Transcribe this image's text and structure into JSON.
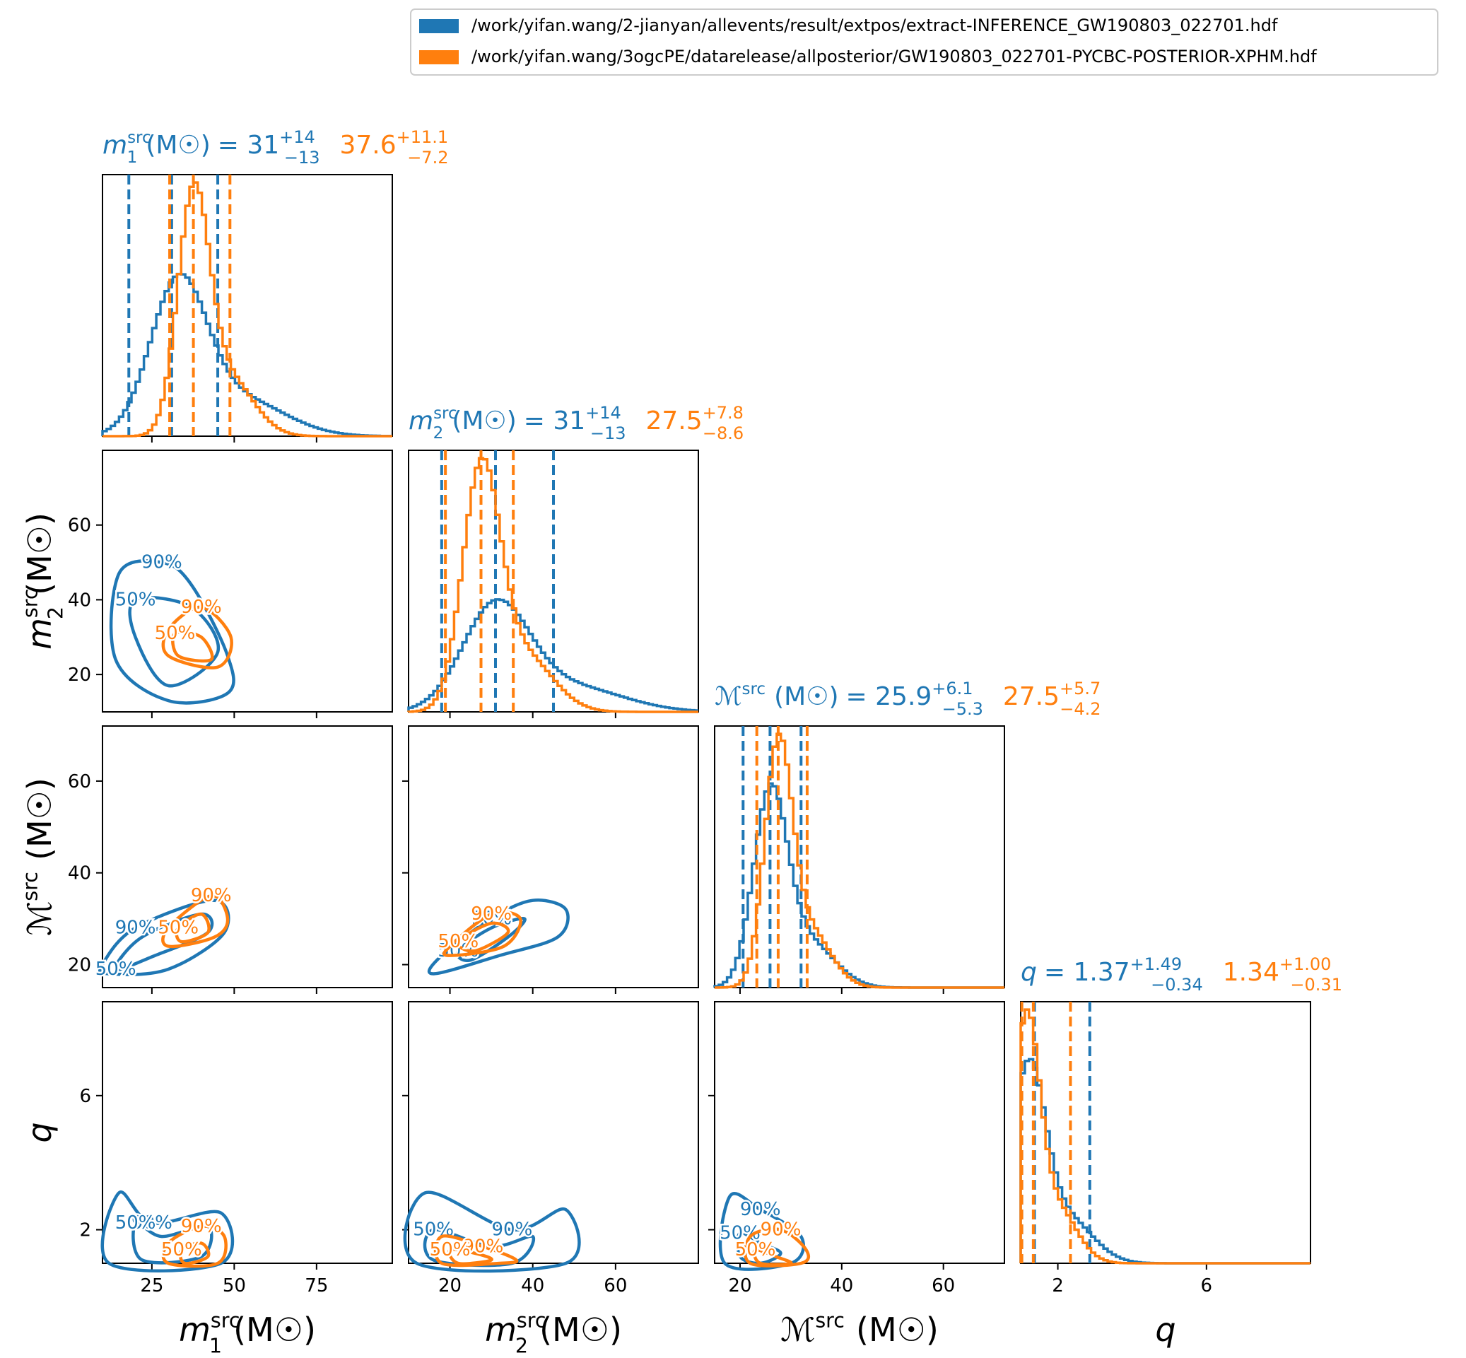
{
  "colors": {
    "blue": "#1f77b4",
    "orange": "#ff7f0e",
    "axis": "#000000"
  },
  "legend": {
    "placement": "top-right",
    "entries": [
      {
        "label": "/work/yifan.wang/2-jianyan/allevents/result/extpos/extract-INFERENCE_GW190803_022701.hdf",
        "color": "#1f77b4"
      },
      {
        "label": "/work/yifan.wang/3ogcPE/datarelease/allposterior/GW190803_022701-PYCBC-POSTERIOR-XPHM.hdf",
        "color": "#ff7f0e"
      }
    ]
  },
  "chart_data": {
    "type": "corner",
    "parameters": [
      {
        "key": "m1",
        "name": "m",
        "sub": "1",
        "sup": "src",
        "unit": "(M☉)",
        "math": false,
        "ticks": [
          25,
          50,
          75
        ],
        "tick_labels": [
          "25",
          "50",
          "75"
        ],
        "range": [
          10,
          98
        ],
        "summary": {
          "blue": {
            "median": "31",
            "plus": "+14",
            "minus": "−13"
          },
          "orange": {
            "median": "37.6",
            "plus": "+11.1",
            "minus": "−7.2"
          }
        }
      },
      {
        "key": "m2",
        "name": "m",
        "sub": "2",
        "sup": "src",
        "unit": "(M☉)",
        "math": false,
        "ticks": [
          20,
          40,
          60
        ],
        "tick_labels": [
          "20",
          "40",
          "60"
        ],
        "range": [
          10,
          80
        ],
        "summary": {
          "blue": {
            "median": "31",
            "plus": "+14",
            "minus": "−13"
          },
          "orange": {
            "median": "27.5",
            "plus": "+7.8",
            "minus": "−8.6"
          }
        }
      },
      {
        "key": "mc",
        "name": "ℳ",
        "sub": "",
        "sup": "src",
        "unit": "(M☉)",
        "math": true,
        "ticks": [
          20,
          40,
          60
        ],
        "tick_labels": [
          "20",
          "40",
          "60"
        ],
        "range": [
          15,
          72
        ],
        "summary": {
          "blue": {
            "median": "25.9",
            "plus": "+6.1",
            "minus": "−5.3"
          },
          "orange": {
            "median": "27.5",
            "plus": "+5.7",
            "minus": "−4.2"
          }
        }
      },
      {
        "key": "q",
        "name": "q",
        "sub": "",
        "sup": "",
        "unit": "",
        "math": false,
        "ticks": [
          2,
          6
        ],
        "tick_labels": [
          "2",
          "6"
        ],
        "range": [
          1.0,
          8.8
        ],
        "summary": {
          "blue": {
            "median": "1.37",
            "plus": "+1.49",
            "minus": "−0.34"
          },
          "orange": {
            "median": "1.34",
            "plus": "+1.00",
            "minus": "−0.31"
          }
        }
      }
    ],
    "series": [
      {
        "name": "blue",
        "marginals": {
          "m1": {
            "mu": 33,
            "sigma": 8.5,
            "dashed": [
              18,
              31,
              45
            ]
          },
          "m2": {
            "mu": 31,
            "sigma": 8,
            "dashed": [
              18,
              31,
              45
            ]
          },
          "mc": {
            "mu": 25.9,
            "sigma": 3.3,
            "dashed": [
              20.6,
              25.9,
              32
            ]
          },
          "q": {
            "mu": 1.2,
            "sigma": 0.45,
            "dashed": [
              1.03,
              1.37,
              2.86
            ]
          }
        },
        "contours": {
          "m2_m1": {
            "c50": [
              [
                20,
                40
              ],
              [
                37,
                38
              ],
              [
                45,
                26
              ],
              [
                30,
                17
              ],
              [
                20,
                30
              ]
            ],
            "c90": [
              [
                15,
                47
              ],
              [
                28,
                50
              ],
              [
                37,
                44
              ],
              [
                48,
                25
              ],
              [
                48,
                15
              ],
              [
                30,
                13
              ],
              [
                14,
                24
              ]
            ]
          },
          "mc_m1": {
            "c50": [
              [
                14,
                19
              ],
              [
                22,
                26
              ],
              [
                40,
                31
              ],
              [
                42,
                27
              ],
              [
                26,
                22
              ]
            ],
            "c90": [
              [
                10,
                20
              ],
              [
                20,
                28
              ],
              [
                44,
                34
              ],
              [
                47,
                27
              ],
              [
                30,
                19
              ],
              [
                12,
                18
              ]
            ]
          },
          "mc_m2": {
            "c50": [
              [
                22,
                23
              ],
              [
                30,
                28
              ],
              [
                38,
                30
              ],
              [
                34,
                26
              ],
              [
                25,
                21
              ]
            ],
            "c90": [
              [
                18,
                22
              ],
              [
                30,
                30
              ],
              [
                40,
                34
              ],
              [
                48,
                32
              ],
              [
                46,
                26
              ],
              [
                32,
                22
              ],
              [
                16,
                18
              ]
            ]
          },
          "q_m1": {
            "c50": [
              [
                20,
                2.2
              ],
              [
                28,
                1.8
              ],
              [
                42,
                2.1
              ],
              [
                40,
                1.2
              ],
              [
                22,
                1.1
              ]
            ],
            "c90": [
              [
                15,
                3.1
              ],
              [
                25,
                2.2
              ],
              [
                46,
                2.5
              ],
              [
                46,
                1.0
              ],
              [
                12,
                1.0
              ]
            ]
          },
          "q_m2": {
            "c50": [
              [
                16,
                2.0
              ],
              [
                30,
                1.5
              ],
              [
                40,
                1.8
              ],
              [
                35,
                1.0
              ],
              [
                16,
                1.1
              ]
            ],
            "c90": [
              [
                14,
                3.1
              ],
              [
                35,
                2.0
              ],
              [
                48,
                2.6
              ],
              [
                48,
                1.0
              ],
              [
                12,
                1.0
              ]
            ]
          },
          "q_mc": {
            "c50": [
              [
                20,
                1.9
              ],
              [
                24,
                1.6
              ],
              [
                28,
                1.3
              ],
              [
                24,
                1.0
              ],
              [
                20,
                1.2
              ]
            ],
            "c90": [
              [
                18,
                3.0
              ],
              [
                24,
                2.6
              ],
              [
                32,
                1.8
              ],
              [
                30,
                1.0
              ],
              [
                17,
                1.0
              ]
            ]
          }
        }
      },
      {
        "name": "orange",
        "marginals": {
          "m1": {
            "mu": 37.6,
            "sigma": 4.8,
            "dashed": [
              30.4,
              37.6,
              48.7
            ]
          },
          "m2": {
            "mu": 27.5,
            "sigma": 4.5,
            "dashed": [
              18.9,
              27.5,
              35.3
            ]
          },
          "mc": {
            "mu": 27.5,
            "sigma": 2.7,
            "dashed": [
              23.3,
              27.5,
              33.2
            ]
          },
          "q": {
            "mu": 1.15,
            "sigma": 0.35,
            "dashed": [
              1.03,
              1.34,
              2.34
            ]
          }
        },
        "contours": {
          "m2_m1": {
            "c50": [
              [
                32,
                31
              ],
              [
                40,
                30
              ],
              [
                43,
                24
              ],
              [
                33,
                25
              ]
            ],
            "c90": [
              [
                30,
                32
              ],
              [
                40,
                38
              ],
              [
                49,
                30
              ],
              [
                45,
                22
              ],
              [
                30,
                25
              ]
            ]
          },
          "mc_m1": {
            "c50": [
              [
                33,
                28
              ],
              [
                40,
                31
              ],
              [
                42,
                27
              ],
              [
                34,
                25
              ]
            ],
            "c90": [
              [
                30,
                28
              ],
              [
                43,
                35
              ],
              [
                48,
                30
              ],
              [
                44,
                26
              ],
              [
                30,
                24
              ]
            ]
          },
          "mc_m2": {
            "c50": [
              [
                22,
                25
              ],
              [
                30,
                29
              ],
              [
                34,
                27
              ],
              [
                26,
                23
              ]
            ],
            "c90": [
              [
                20,
                24
              ],
              [
                30,
                31
              ],
              [
                37,
                30
              ],
              [
                33,
                24
              ],
              [
                20,
                22
              ]
            ]
          },
          "q_m1": {
            "c50": [
              [
                34,
                1.4
              ],
              [
                40,
                1.6
              ],
              [
                42,
                1.2
              ],
              [
                35,
                1.0
              ]
            ],
            "c90": [
              [
                30,
                1.6
              ],
              [
                40,
                2.1
              ],
              [
                47,
                1.8
              ],
              [
                45,
                1.0
              ],
              [
                30,
                1.0
              ]
            ]
          },
          "q_m2": {
            "c50": [
              [
                20,
                1.4
              ],
              [
                26,
                1.3
              ],
              [
                30,
                1.1
              ],
              [
                22,
                1.0
              ]
            ],
            "c90": [
              [
                18,
                1.8
              ],
              [
                28,
                1.5
              ],
              [
                36,
                1.1
              ],
              [
                32,
                1.0
              ],
              [
                18,
                1.0
              ]
            ]
          },
          "q_mc": {
            "c50": [
              [
                23,
                1.4
              ],
              [
                27,
                1.2
              ],
              [
                30,
                1.0
              ],
              [
                24,
                1.0
              ]
            ],
            "c90": [
              [
                22,
                1.8
              ],
              [
                28,
                2.0
              ],
              [
                33,
                1.4
              ],
              [
                32,
                1.0
              ],
              [
                22,
                1.0
              ]
            ]
          }
        }
      }
    ]
  }
}
